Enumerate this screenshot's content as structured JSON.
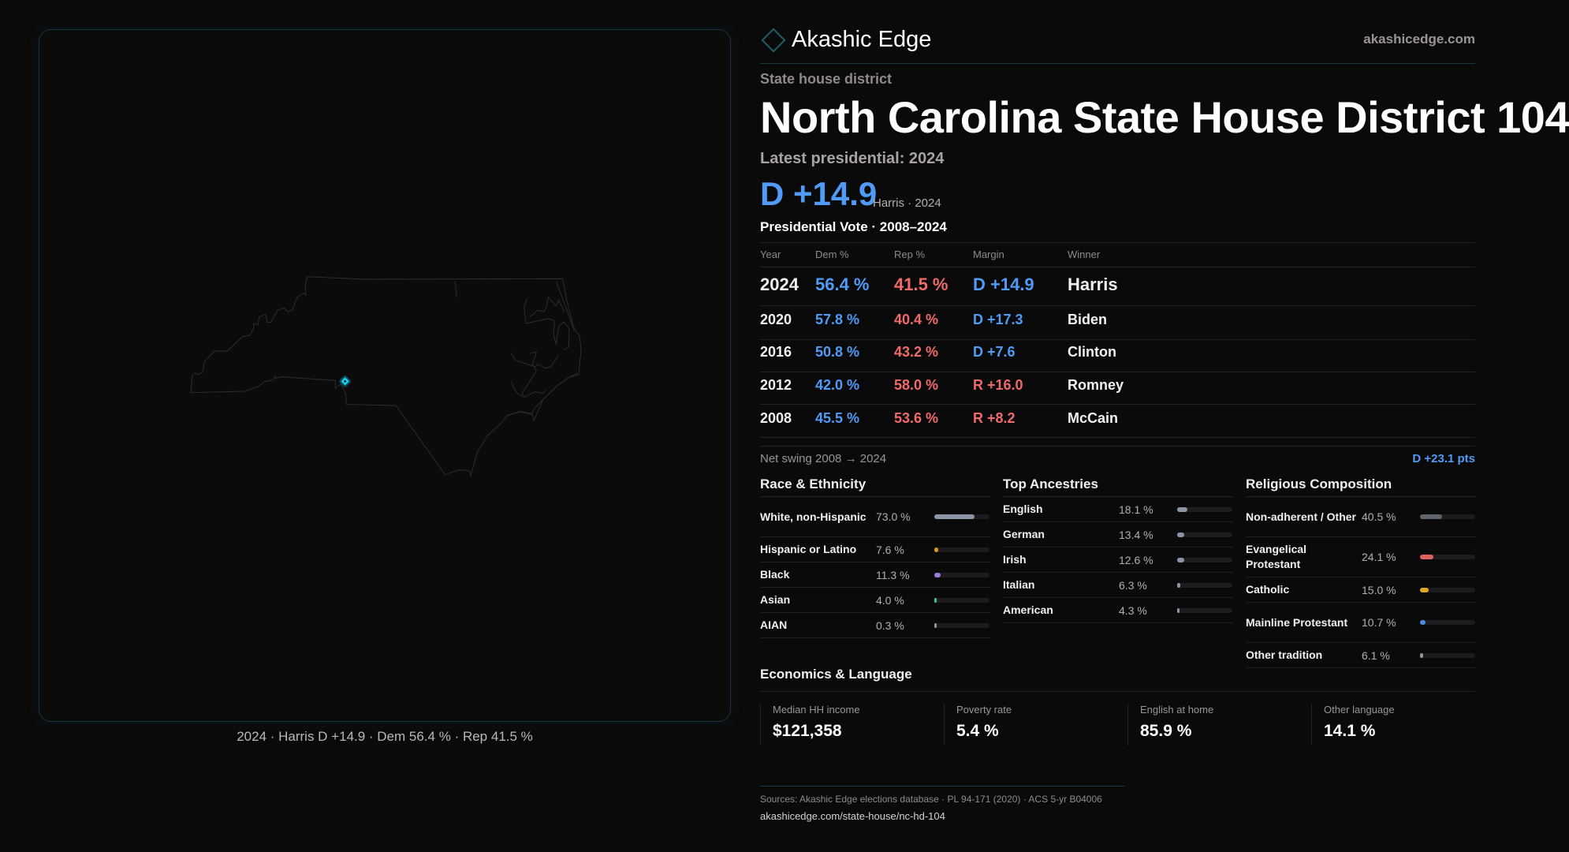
{
  "map": {
    "caption": "2024 · Harris D +14.9 · Dem 56.4 % · Rep 41.5 %",
    "highlight_color": "#19d3f0"
  },
  "brand": {
    "name": "Akashic Edge",
    "site": "akashicedge.com"
  },
  "header": {
    "kicker": "State house district",
    "title": "North Carolina State House District 104",
    "latest": "Latest presidential: 2024",
    "margin": "D +14.9",
    "margin_sub": "Harris · 2024"
  },
  "colors": {
    "dem": "#4f9bf5",
    "rep": "#f06a6a"
  },
  "presidential": {
    "title": "Presidential Vote · 2008–2024",
    "headers": [
      "Year",
      "Dem %",
      "Rep %",
      "Margin",
      "Winner"
    ],
    "rows": [
      {
        "year": "2024",
        "dem": "56.4 %",
        "rep": "41.5 %",
        "margin": "D +14.9",
        "party": "D",
        "winner": "Harris"
      },
      {
        "year": "2020",
        "dem": "57.8 %",
        "rep": "40.4 %",
        "margin": "D +17.3",
        "party": "D",
        "winner": "Biden"
      },
      {
        "year": "2016",
        "dem": "50.8 %",
        "rep": "43.2 %",
        "margin": "D +7.6",
        "party": "D",
        "winner": "Clinton"
      },
      {
        "year": "2012",
        "dem": "42.0 %",
        "rep": "58.0 %",
        "margin": "R +16.0",
        "party": "R",
        "winner": "Romney"
      },
      {
        "year": "2008",
        "dem": "45.5 %",
        "rep": "53.6 %",
        "margin": "R +8.2",
        "party": "R",
        "winner": "McCain"
      }
    ],
    "swing_label": "Net swing 2008 → 2024",
    "swing_value": "D +23.1 pts"
  },
  "demographics": [
    {
      "title": "Race & Ethnicity",
      "items": [
        {
          "label": "White, non-Hispanic",
          "value": "73.0 %",
          "pct": 73.0,
          "color": "#8c95a6"
        },
        {
          "label": "Hispanic or Latino",
          "value": "7.6 %",
          "pct": 7.6,
          "color": "#d9951a"
        },
        {
          "label": "Black",
          "value": "11.3 %",
          "pct": 11.3,
          "color": "#9b7be0"
        },
        {
          "label": "Asian",
          "value": "4.0 %",
          "pct": 4.0,
          "color": "#2ec79a"
        },
        {
          "label": "AIAN",
          "value": "0.3 %",
          "pct": 0.3,
          "color": "#8c95a6"
        }
      ]
    },
    {
      "title": "Top Ancestries",
      "items": [
        {
          "label": "English",
          "value": "18.1 %",
          "pct": 18.1,
          "color": "#8c95a6"
        },
        {
          "label": "German",
          "value": "13.4 %",
          "pct": 13.4,
          "color": "#8c95a6"
        },
        {
          "label": "Irish",
          "value": "12.6 %",
          "pct": 12.6,
          "color": "#8c95a6"
        },
        {
          "label": "Italian",
          "value": "6.3 %",
          "pct": 6.3,
          "color": "#8c95a6"
        },
        {
          "label": "American",
          "value": "4.3 %",
          "pct": 4.3,
          "color": "#8c95a6"
        }
      ]
    },
    {
      "title": "Religious Composition",
      "items": [
        {
          "label": "Non-adherent / Other",
          "value": "40.5 %",
          "pct": 40.5,
          "color": "#60646f"
        },
        {
          "label": "Evangelical Protestant",
          "value": "24.1 %",
          "pct": 24.1,
          "color": "#e06060"
        },
        {
          "label": "Catholic",
          "value": "15.0 %",
          "pct": 15.0,
          "color": "#e0a820"
        },
        {
          "label": "Mainline Protestant",
          "value": "10.7 %",
          "pct": 10.7,
          "color": "#4a8ee0"
        },
        {
          "label": "Other tradition",
          "value": "6.1 %",
          "pct": 6.1,
          "color": "#8c95a6"
        }
      ]
    }
  ],
  "economics": {
    "title": "Economics & Language",
    "stats": [
      {
        "label": "Median HH income",
        "value": "$121,358"
      },
      {
        "label": "Poverty rate",
        "value": "5.4 %"
      },
      {
        "label": "English at home",
        "value": "85.9 %"
      },
      {
        "label": "Other language",
        "value": "14.1 %"
      }
    ]
  },
  "footer": {
    "sources": "Sources: Akashic Edge elections database · PL 94-171 (2020) · ACS 5-yr B04006",
    "url": "akashicedge.com/state-house/nc-hd-104"
  }
}
